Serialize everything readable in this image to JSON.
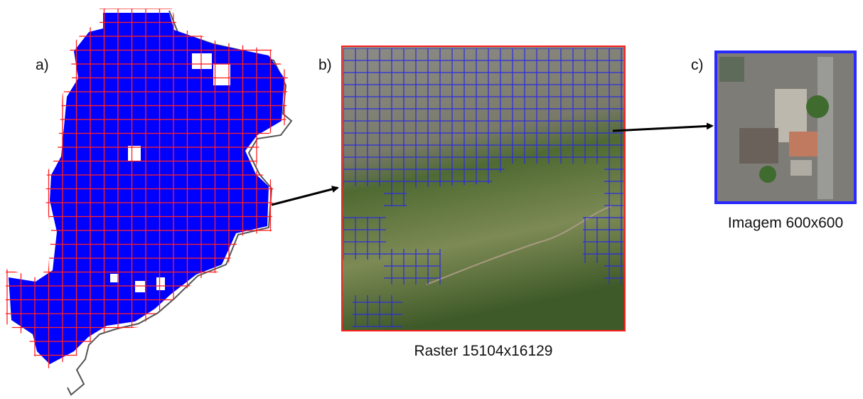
{
  "panels": [
    {
      "label": "a)"
    },
    {
      "label": "b)",
      "caption": "Raster 15104x16129"
    },
    {
      "label": "c)",
      "caption": "Imagem 600x600"
    }
  ]
}
